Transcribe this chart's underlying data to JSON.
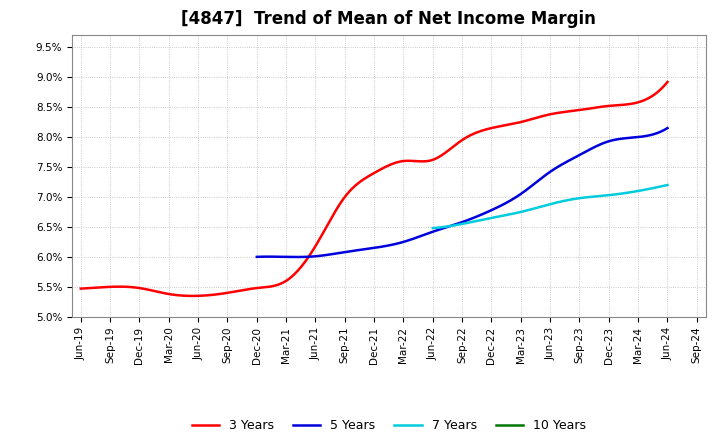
{
  "title": "[4847]  Trend of Mean of Net Income Margin",
  "ylim": [
    0.05,
    0.097
  ],
  "yticks": [
    0.05,
    0.055,
    0.06,
    0.065,
    0.07,
    0.075,
    0.08,
    0.085,
    0.09,
    0.095
  ],
  "background_color": "#ffffff",
  "grid_color": "#bbbbbb",
  "series": {
    "3 Years": {
      "color": "#ff0000",
      "data": [
        [
          "Jun-19",
          0.0547
        ],
        [
          "Sep-19",
          0.055
        ],
        [
          "Dec-19",
          0.0548
        ],
        [
          "Mar-20",
          0.0538
        ],
        [
          "Jun-20",
          0.0535
        ],
        [
          "Sep-20",
          0.054
        ],
        [
          "Dec-20",
          0.0548
        ],
        [
          "Mar-21",
          0.056
        ],
        [
          "Jun-21",
          0.0618
        ],
        [
          "Sep-21",
          0.07
        ],
        [
          "Dec-21",
          0.074
        ],
        [
          "Mar-22",
          0.076
        ],
        [
          "Jun-22",
          0.0762
        ],
        [
          "Sep-22",
          0.0795
        ],
        [
          "Dec-22",
          0.0815
        ],
        [
          "Mar-23",
          0.0825
        ],
        [
          "Jun-23",
          0.0838
        ],
        [
          "Sep-23",
          0.0845
        ],
        [
          "Dec-23",
          0.0852
        ],
        [
          "Mar-24",
          0.0858
        ],
        [
          "Jun-24",
          0.0892
        ]
      ]
    },
    "5 Years": {
      "color": "#0000dd",
      "data": [
        [
          "Dec-20",
          0.06
        ],
        [
          "Mar-21",
          0.06
        ],
        [
          "Jun-21",
          0.0601
        ],
        [
          "Sep-21",
          0.0608
        ],
        [
          "Dec-21",
          0.0615
        ],
        [
          "Mar-22",
          0.0625
        ],
        [
          "Jun-22",
          0.0642
        ],
        [
          "Sep-22",
          0.0658
        ],
        [
          "Dec-22",
          0.0678
        ],
        [
          "Mar-23",
          0.0705
        ],
        [
          "Jun-23",
          0.0742
        ],
        [
          "Sep-23",
          0.077
        ],
        [
          "Dec-23",
          0.0793
        ],
        [
          "Mar-24",
          0.08
        ],
        [
          "Jun-24",
          0.0815
        ]
      ]
    },
    "7 Years": {
      "color": "#00ccdd",
      "data": [
        [
          "Jun-22",
          0.0648
        ],
        [
          "Sep-22",
          0.0655
        ],
        [
          "Dec-22",
          0.0665
        ],
        [
          "Mar-23",
          0.0675
        ],
        [
          "Jun-23",
          0.0688
        ],
        [
          "Sep-23",
          0.0698
        ],
        [
          "Dec-23",
          0.0703
        ],
        [
          "Mar-24",
          0.071
        ],
        [
          "Jun-24",
          0.072
        ]
      ]
    },
    "10 Years": {
      "color": "#007700",
      "data": []
    }
  },
  "xtick_labels": [
    "Jun-19",
    "Sep-19",
    "Dec-19",
    "Mar-20",
    "Jun-20",
    "Sep-20",
    "Dec-20",
    "Mar-21",
    "Jun-21",
    "Sep-21",
    "Dec-21",
    "Mar-22",
    "Jun-22",
    "Sep-22",
    "Dec-22",
    "Mar-23",
    "Jun-23",
    "Sep-23",
    "Dec-23",
    "Mar-24",
    "Jun-24",
    "Sep-24"
  ],
  "legend_labels": [
    "3 Years",
    "5 Years",
    "7 Years",
    "10 Years"
  ],
  "legend_colors": [
    "#ff0000",
    "#0000dd",
    "#00ccdd",
    "#007700"
  ],
  "title_fontsize": 12,
  "tick_fontsize": 7.5,
  "linewidth": 1.8
}
